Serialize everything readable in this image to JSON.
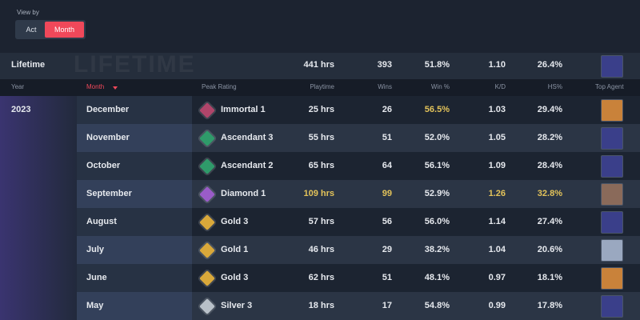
{
  "view_by": {
    "label": "View by",
    "options": [
      "Act",
      "Month"
    ],
    "active": 1
  },
  "lifetime": {
    "label": "Lifetime",
    "watermark": "LIFETIME",
    "playtime": "441 hrs",
    "wins": "393",
    "win_pct": "51.8%",
    "kd": "1.10",
    "hs_pct": "26.4%",
    "agent_color": "#3a3f8a"
  },
  "table": {
    "headers": {
      "year": "Year",
      "month": "Month",
      "rating": "Peak Rating",
      "playtime": "Playtime",
      "wins": "Wins",
      "win_pct": "Win %",
      "kd": "K/D",
      "hs_pct": "HS%",
      "agent": "Top Agent"
    },
    "year": "2023",
    "rows": [
      {
        "month": "December",
        "rating": "Immortal 1",
        "rating_color": "#b0456a",
        "playtime": "25 hrs",
        "wins": "26",
        "win_pct": "56.5%",
        "kd": "1.03",
        "hs_pct": "29.4%",
        "agent_color": "#c9823a",
        "highlight": [
          "win_pct"
        ]
      },
      {
        "month": "November",
        "rating": "Ascendant 3",
        "rating_color": "#2f9a6a",
        "playtime": "55 hrs",
        "wins": "51",
        "win_pct": "52.0%",
        "kd": "1.05",
        "hs_pct": "28.2%",
        "agent_color": "#3a3f8a",
        "highlight": []
      },
      {
        "month": "October",
        "rating": "Ascendant 2",
        "rating_color": "#2f9a6a",
        "playtime": "65 hrs",
        "wins": "64",
        "win_pct": "56.1%",
        "kd": "1.09",
        "hs_pct": "28.4%",
        "agent_color": "#3a3f8a",
        "highlight": []
      },
      {
        "month": "September",
        "rating": "Diamond 1",
        "rating_color": "#9a5cc8",
        "playtime": "109 hrs",
        "wins": "99",
        "win_pct": "52.9%",
        "kd": "1.26",
        "hs_pct": "32.8%",
        "agent_color": "#8a6a5a",
        "highlight": [
          "playtime",
          "wins",
          "kd",
          "hs_pct"
        ]
      },
      {
        "month": "August",
        "rating": "Gold 3",
        "rating_color": "#d9a83a",
        "playtime": "57 hrs",
        "wins": "56",
        "win_pct": "56.0%",
        "kd": "1.14",
        "hs_pct": "27.4%",
        "agent_color": "#3a3f8a",
        "highlight": []
      },
      {
        "month": "July",
        "rating": "Gold 1",
        "rating_color": "#d9a83a",
        "playtime": "46 hrs",
        "wins": "29",
        "win_pct": "38.2%",
        "kd": "1.04",
        "hs_pct": "20.6%",
        "agent_color": "#9aa8c0",
        "highlight": []
      },
      {
        "month": "June",
        "rating": "Gold 3",
        "rating_color": "#d9a83a",
        "playtime": "62 hrs",
        "wins": "51",
        "win_pct": "48.1%",
        "kd": "0.97",
        "hs_pct": "18.1%",
        "agent_color": "#c9823a",
        "highlight": []
      },
      {
        "month": "May",
        "rating": "Silver 3",
        "rating_color": "#b8c0c8",
        "playtime": "18 hrs",
        "wins": "17",
        "win_pct": "54.8%",
        "kd": "0.99",
        "hs_pct": "17.8%",
        "agent_color": "#3a3f8a",
        "highlight": []
      }
    ]
  }
}
